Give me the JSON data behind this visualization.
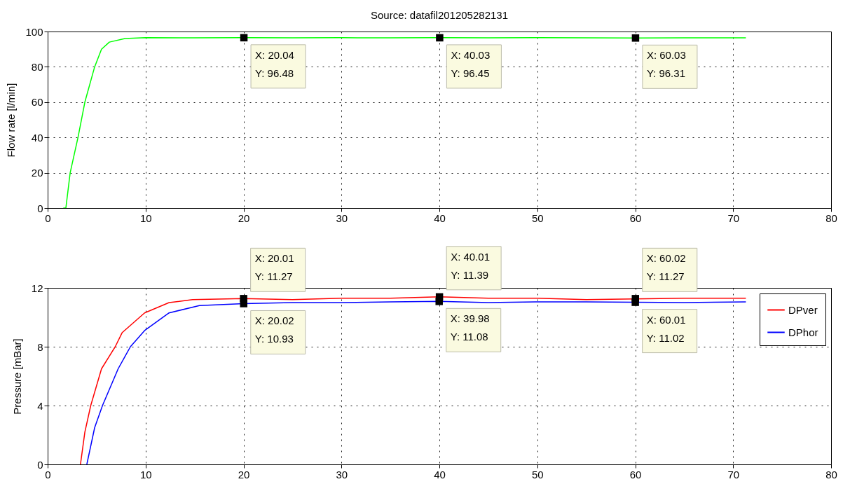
{
  "chart_data": [
    {
      "type": "line",
      "title": "Source: datafil201205282131",
      "ylabel": "Flow rate [l/min]",
      "series": [
        {
          "color": "#00ff00",
          "x": [
            1.6,
            1.86,
            2.3,
            3.1,
            3.8,
            4.8,
            5.5,
            6.3,
            7.9,
            10,
            15,
            20,
            25,
            30,
            35,
            40,
            45,
            50,
            55,
            60,
            65,
            71.3
          ],
          "values": [
            0,
            0,
            20,
            40,
            60,
            80,
            90,
            94,
            96,
            96.5,
            96.4,
            96.5,
            96.4,
            96.5,
            96.4,
            96.5,
            96.4,
            96.5,
            96.4,
            96.3,
            96.4,
            96.4
          ]
        }
      ],
      "xlim": [
        0,
        80
      ],
      "xticks": [
        0,
        10,
        20,
        30,
        40,
        50,
        60,
        70,
        80
      ],
      "ylim": [
        0,
        100
      ],
      "yticks": [
        0,
        20,
        40,
        60,
        80,
        100
      ],
      "grid": true,
      "annotations": [
        {
          "text": "X: 20.04\nY: 96.48",
          "x": 20.04,
          "y": 96.48
        },
        {
          "text": "X: 40.03\nY: 96.45",
          "x": 40.03,
          "y": 96.45
        },
        {
          "text": "X: 60.03\nY: 96.31",
          "x": 60.03,
          "y": 96.31
        }
      ]
    },
    {
      "type": "line",
      "ylabel": "Pressure [mBar]",
      "series": [
        {
          "name": "DPver",
          "color": "#ff0000",
          "x": [
            3.35,
            3.8,
            4.4,
            5.5,
            6.9,
            7.6,
            9.9,
            12.4,
            14.8,
            20,
            25,
            30,
            35,
            40,
            45,
            50,
            55,
            65,
            71.3
          ],
          "values": [
            0,
            2.2,
            4,
            6.5,
            8,
            8.95,
            10.3,
            11,
            11.2,
            11.27,
            11.2,
            11.3,
            11.3,
            11.39,
            11.3,
            11.3,
            11.2,
            11.3,
            11.3
          ]
        },
        {
          "name": "DPhor",
          "color": "#0000ff",
          "x": [
            4,
            4.8,
            5.6,
            7.2,
            8.45,
            9.9,
            12.4,
            15.5,
            20,
            25,
            30,
            35,
            40,
            45,
            50,
            55,
            60,
            65,
            71.3
          ],
          "values": [
            0,
            2.5,
            4,
            6.5,
            8,
            9.1,
            10.3,
            10.8,
            10.93,
            11,
            11,
            11.05,
            11.08,
            11,
            11.05,
            11.05,
            11.02,
            11,
            11.05
          ]
        }
      ],
      "xlim": [
        0,
        80
      ],
      "xticks": [
        0,
        10,
        20,
        30,
        40,
        50,
        60,
        70,
        80
      ],
      "ylim": [
        0,
        12
      ],
      "yticks": [
        0,
        4,
        8,
        12
      ],
      "grid": true,
      "legend": "top right",
      "annotations": [
        {
          "text": "X: 20.01\nY: 11.27",
          "x": 20.01,
          "y": 11.27
        },
        {
          "text": "X: 20.02\nY: 10.93",
          "x": 20.02,
          "y": 10.93
        },
        {
          "text": "X: 40.01\nY: 11.39",
          "x": 40.01,
          "y": 11.39
        },
        {
          "text": "X: 39.98\nY: 11.08",
          "x": 39.98,
          "y": 11.08
        },
        {
          "text": "X: 60.02\nY: 11.27",
          "x": 60.02,
          "y": 11.27
        },
        {
          "text": "X: 60.01\nY: 11.02",
          "x": 60.01,
          "y": 11.02
        }
      ]
    }
  ]
}
